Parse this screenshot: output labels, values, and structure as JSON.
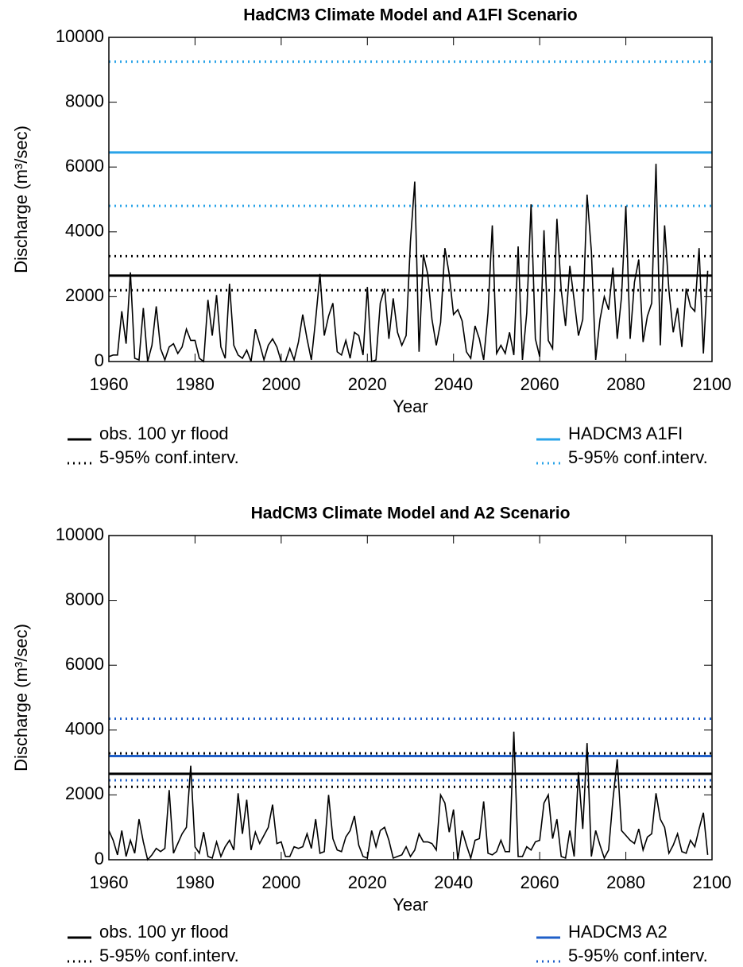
{
  "chart_data": [
    {
      "type": "line",
      "title": "HadCM3 Climate Model and A1FI Scenario",
      "xlabel": "Year",
      "ylabel": "Discharge (m³/sec)",
      "x": [
        1960,
        1961,
        1962,
        1963,
        1964,
        1965,
        1966,
        1967,
        1968,
        1969,
        1970,
        1971,
        1972,
        1973,
        1974,
        1975,
        1976,
        1977,
        1978,
        1979,
        1980,
        1981,
        1982,
        1983,
        1984,
        1985,
        1986,
        1987,
        1988,
        1989,
        1990,
        1991,
        1992,
        1993,
        1994,
        1995,
        1996,
        1997,
        1998,
        1999,
        2000,
        2001,
        2002,
        2003,
        2004,
        2005,
        2006,
        2007,
        2008,
        2009,
        2010,
        2011,
        2012,
        2013,
        2014,
        2015,
        2016,
        2017,
        2018,
        2019,
        2020,
        2021,
        2022,
        2023,
        2024,
        2025,
        2026,
        2027,
        2028,
        2029,
        2030,
        2031,
        2032,
        2033,
        2034,
        2035,
        2036,
        2037,
        2038,
        2039,
        2040,
        2041,
        2042,
        2043,
        2044,
        2045,
        2046,
        2047,
        2048,
        2049,
        2050,
        2051,
        2052,
        2053,
        2054,
        2055,
        2056,
        2057,
        2058,
        2059,
        2060,
        2061,
        2062,
        2063,
        2064,
        2065,
        2066,
        2067,
        2068,
        2069,
        2070,
        2071,
        2072,
        2073,
        2074,
        2075,
        2076,
        2077,
        2078,
        2079,
        2080,
        2081,
        2082,
        2083,
        2084,
        2085,
        2086,
        2087,
        2088,
        2089,
        2090,
        2091,
        2092,
        2093,
        2094,
        2095,
        2096,
        2097,
        2098,
        2099
      ],
      "series": [
        {
          "color": "#000000",
          "values": [
            150,
            200,
            200,
            1550,
            550,
            2750,
            100,
            50,
            1650,
            0,
            500,
            1700,
            400,
            50,
            450,
            550,
            250,
            450,
            1000,
            650,
            650,
            100,
            0,
            1900,
            800,
            2050,
            450,
            100,
            2400,
            500,
            200,
            100,
            350,
            0,
            1000,
            550,
            50,
            500,
            700,
            450,
            0,
            0,
            400,
            50,
            600,
            1450,
            700,
            50,
            1300,
            2700,
            800,
            1400,
            1800,
            300,
            200,
            650,
            100,
            900,
            800,
            200,
            2300,
            0,
            50,
            1800,
            2250,
            700,
            1950,
            900,
            500,
            800,
            3700,
            5550,
            300,
            3300,
            2700,
            1300,
            500,
            1200,
            3500,
            2700,
            1450,
            1600,
            1250,
            300,
            100,
            1100,
            700,
            50,
            1500,
            4200,
            250,
            500,
            250,
            900,
            200,
            3550,
            50,
            1500,
            4850,
            700,
            150,
            4050,
            650,
            400,
            4400,
            2200,
            1100,
            2950,
            1900,
            800,
            1300,
            5150,
            3400,
            50,
            1300,
            2000,
            1600,
            2900,
            700,
            2000,
            4800,
            700,
            2450,
            3150,
            600,
            1400,
            1800,
            6100,
            500,
            4200,
            2200,
            900,
            1650,
            450,
            2250,
            1700,
            1550,
            3500,
            250,
            2800
          ]
        }
      ],
      "reference_lines": [
        {
          "name": "obs. 100 yr flood",
          "color": "#000000",
          "style": "solid",
          "values": [
            2650
          ]
        },
        {
          "name": "5-95% conf.interv.",
          "color": "#000000",
          "style": "dotted",
          "values": [
            2200,
            3250
          ]
        },
        {
          "name": "HADCM3 A1FI",
          "color": "#29a3e8",
          "style": "solid",
          "values": [
            6450
          ]
        },
        {
          "name": "5-95% conf.interv.",
          "color": "#29a3e8",
          "style": "dotted",
          "values": [
            4800,
            9250
          ]
        }
      ],
      "xlim": [
        1960,
        2100
      ],
      "ylim": [
        0,
        10000
      ],
      "xticks": [
        1960,
        1980,
        2000,
        2020,
        2040,
        2060,
        2080,
        2100
      ],
      "yticks": [
        0,
        2000,
        4000,
        6000,
        8000,
        10000
      ]
    },
    {
      "type": "line",
      "title": "HadCM3 Climate Model and A2 Scenario",
      "xlabel": "Year",
      "ylabel": "Discharge (m³/sec)",
      "x": [
        1960,
        1961,
        1962,
        1963,
        1964,
        1965,
        1966,
        1967,
        1968,
        1969,
        1970,
        1971,
        1972,
        1973,
        1974,
        1975,
        1976,
        1977,
        1978,
        1979,
        1980,
        1981,
        1982,
        1983,
        1984,
        1985,
        1986,
        1987,
        1988,
        1989,
        1990,
        1991,
        1992,
        1993,
        1994,
        1995,
        1996,
        1997,
        1998,
        1999,
        2000,
        2001,
        2002,
        2003,
        2004,
        2005,
        2006,
        2007,
        2008,
        2009,
        2010,
        2011,
        2012,
        2013,
        2014,
        2015,
        2016,
        2017,
        2018,
        2019,
        2020,
        2021,
        2022,
        2023,
        2024,
        2025,
        2026,
        2027,
        2028,
        2029,
        2030,
        2031,
        2032,
        2033,
        2034,
        2035,
        2036,
        2037,
        2038,
        2039,
        2040,
        2041,
        2042,
        2043,
        2044,
        2045,
        2046,
        2047,
        2048,
        2049,
        2050,
        2051,
        2052,
        2053,
        2054,
        2055,
        2056,
        2057,
        2058,
        2059,
        2060,
        2061,
        2062,
        2063,
        2064,
        2065,
        2066,
        2067,
        2068,
        2069,
        2070,
        2071,
        2072,
        2073,
        2074,
        2075,
        2076,
        2077,
        2078,
        2079,
        2080,
        2081,
        2082,
        2083,
        2084,
        2085,
        2086,
        2087,
        2088,
        2089,
        2090,
        2091,
        2092,
        2093,
        2094,
        2095,
        2096,
        2097,
        2098,
        2099
      ],
      "series": [
        {
          "color": "#000000",
          "values": [
            900,
            600,
            150,
            900,
            100,
            600,
            200,
            1250,
            550,
            0,
            150,
            350,
            250,
            350,
            2150,
            200,
            500,
            800,
            1000,
            2900,
            400,
            200,
            850,
            100,
            50,
            550,
            100,
            400,
            600,
            300,
            2050,
            800,
            1850,
            300,
            850,
            500,
            750,
            1000,
            1700,
            500,
            550,
            100,
            100,
            400,
            350,
            400,
            800,
            350,
            1250,
            200,
            250,
            2000,
            650,
            300,
            250,
            700,
            900,
            1350,
            450,
            100,
            50,
            900,
            400,
            900,
            1000,
            600,
            50,
            100,
            150,
            400,
            100,
            300,
            800,
            550,
            550,
            500,
            300,
            2000,
            1750,
            850,
            1550,
            0,
            900,
            450,
            50,
            600,
            650,
            1800,
            200,
            150,
            250,
            600,
            250,
            250,
            3950,
            100,
            100,
            400,
            300,
            550,
            600,
            1750,
            2000,
            650,
            1250,
            100,
            50,
            900,
            100,
            2700,
            950,
            3600,
            100,
            900,
            450,
            50,
            300,
            1850,
            3100,
            900,
            750,
            600,
            500,
            950,
            300,
            700,
            800,
            2050,
            1250,
            1000,
            200,
            450,
            800,
            250,
            200,
            600,
            400,
            950,
            1450,
            150
          ]
        }
      ],
      "reference_lines": [
        {
          "name": "obs. 100 yr flood",
          "color": "#000000",
          "style": "solid",
          "values": [
            2650
          ]
        },
        {
          "name": "5-95% conf.interv.",
          "color": "#000000",
          "style": "dotted",
          "values": [
            2250,
            3280
          ]
        },
        {
          "name": "HADCM3 A2",
          "color": "#1f5fc8",
          "style": "solid",
          "values": [
            3200
          ]
        },
        {
          "name": "5-95% conf.interv.",
          "color": "#1f5fc8",
          "style": "dotted",
          "values": [
            2450,
            4350
          ]
        }
      ],
      "xlim": [
        1960,
        2100
      ],
      "ylim": [
        0,
        10000
      ],
      "xticks": [
        1960,
        1980,
        2000,
        2020,
        2040,
        2060,
        2080,
        2100
      ],
      "yticks": [
        0,
        2000,
        4000,
        6000,
        8000,
        10000
      ]
    }
  ]
}
